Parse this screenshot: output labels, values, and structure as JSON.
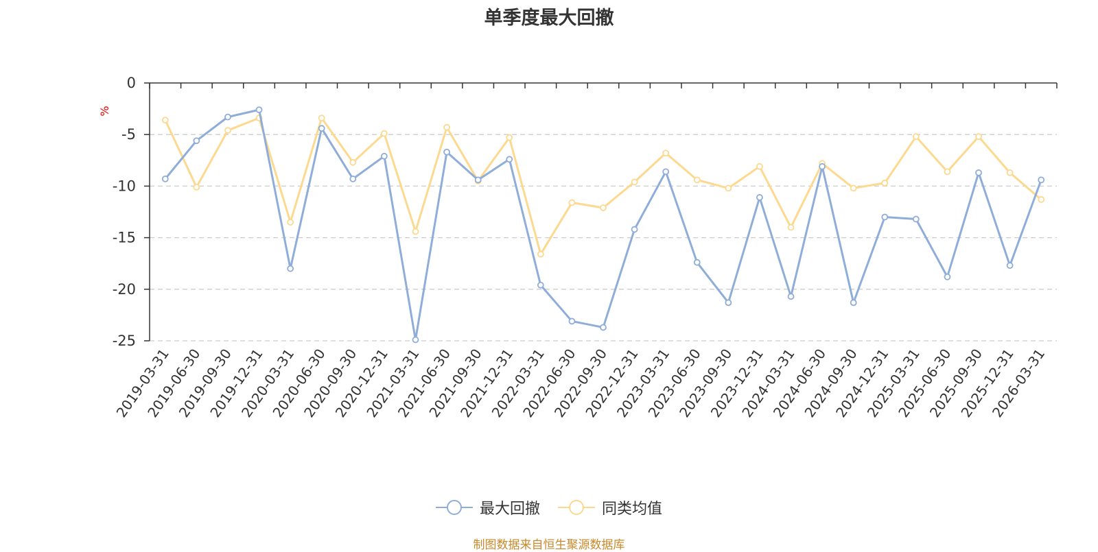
{
  "title": "单季度最大回撤",
  "source_note": "制图数据来自恒生聚源数据库",
  "colors": {
    "series1": "#8fadd9",
    "series2": "#fcd98f",
    "unit_label": "#e60000",
    "grid": "#cccccc",
    "axis": "#333333"
  },
  "chart_data": {
    "type": "line",
    "title": "单季度最大回撤",
    "ylabel": "%",
    "xlabel": "",
    "ylim": [
      -25,
      0
    ],
    "yticks": [
      0,
      -5,
      -10,
      -15,
      -20,
      -25
    ],
    "grid": true,
    "legend_position": "bottom-center",
    "categories": [
      "2019-03-31",
      "2019-06-30",
      "2019-09-30",
      "2019-12-31",
      "2020-03-31",
      "2020-06-30",
      "2020-09-30",
      "2020-12-31",
      "2021-03-31",
      "2021-06-30",
      "2021-09-30",
      "2021-12-31",
      "2022-03-31",
      "2022-06-30",
      "2022-09-30",
      "2022-12-31",
      "2023-03-31",
      "2023-06-30",
      "2023-09-30",
      "2023-12-31",
      "2024-03-31",
      "2024-06-30",
      "2024-09-30",
      "2024-12-31",
      "2025-03-31",
      "2025-06-30",
      "2025-09-30",
      "2025-12-31",
      "2026-03-31"
    ],
    "series": [
      {
        "name": "最大回撤",
        "values": [
          -9.3,
          -5.6,
          -3.3,
          -2.6,
          -18.0,
          -4.4,
          -9.3,
          -7.1,
          -24.9,
          -6.7,
          -9.4,
          -7.4,
          -19.6,
          -23.1,
          -23.7,
          -14.2,
          -8.6,
          -17.4,
          -21.3,
          -11.1,
          -20.7,
          -8.1,
          -21.3,
          -13.0,
          -13.2,
          -18.8,
          -8.7,
          -17.7,
          -9.4
        ]
      },
      {
        "name": "同类均值",
        "values": [
          -3.6,
          -10.1,
          -4.6,
          -3.4,
          -13.5,
          -3.4,
          -7.7,
          -4.9,
          -14.4,
          -4.3,
          -9.5,
          -5.3,
          -16.6,
          -11.6,
          -12.1,
          -9.6,
          -6.8,
          -9.4,
          -10.2,
          -8.1,
          -14.0,
          -7.8,
          -10.2,
          -9.7,
          -5.2,
          -8.6,
          -5.2,
          -8.7,
          -11.3
        ]
      }
    ]
  }
}
